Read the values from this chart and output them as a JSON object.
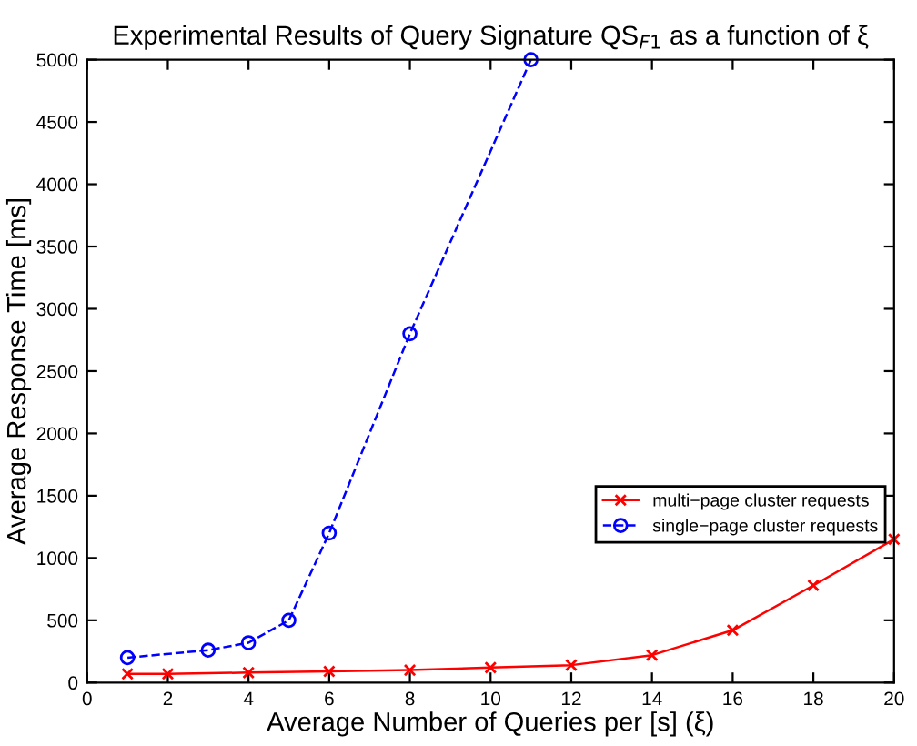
{
  "chart_data": {
    "type": "line",
    "title": "Experimental Results of Query Signature QS$_{F1}$ as a function of ξ",
    "xlabel": "Average Number of Queries per [s] (ξ)",
    "ylabel": "Average Response Time [ms]",
    "series": [
      {
        "name": "multi−page cluster requests",
        "color": "#ff0000",
        "marker": "cross",
        "line_style": "solid",
        "x": [
          1,
          2,
          4,
          6,
          8,
          10,
          12,
          14,
          16,
          18,
          20
        ],
        "values": [
          70,
          70,
          80,
          90,
          100,
          120,
          140,
          220,
          420,
          780,
          1150
        ]
      },
      {
        "name": "single−page cluster requests",
        "color": "#0000ff",
        "marker": "circle",
        "line_style": "dashed",
        "x": [
          1,
          3,
          4,
          5,
          6,
          8,
          11
        ],
        "values": [
          200,
          260,
          320,
          500,
          1200,
          2800,
          5000
        ]
      }
    ],
    "xlim": [
      0,
      20
    ],
    "xticks": [
      0,
      2,
      4,
      6,
      8,
      10,
      12,
      14,
      16,
      18,
      20
    ],
    "ylim": [
      0,
      5000
    ],
    "yticks": [
      0,
      500,
      1000,
      1500,
      2000,
      2500,
      3000,
      3500,
      4000,
      4500,
      5000
    ],
    "grid": false,
    "legend": "right"
  }
}
